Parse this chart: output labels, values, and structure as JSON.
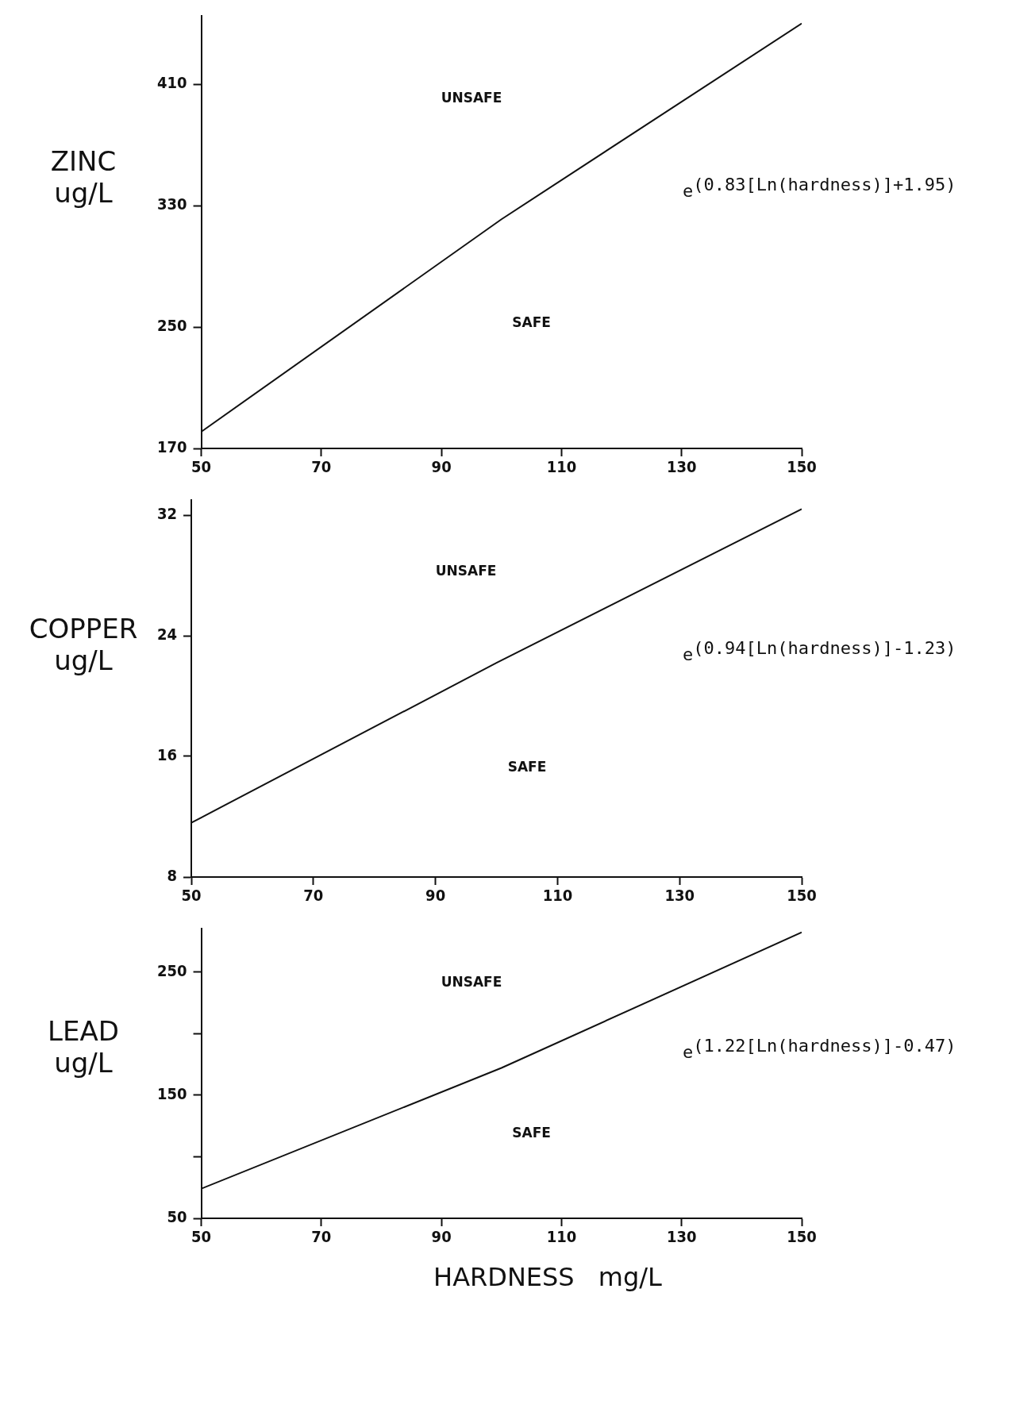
{
  "chart_data": [
    {
      "type": "line",
      "ylabel": "ZINC ug/L",
      "x": [
        50,
        100,
        150
      ],
      "values": [
        181,
        321,
        450
      ],
      "color": "#111111",
      "xlim": [
        50,
        150
      ],
      "xticks": [
        50,
        70,
        90,
        110,
        130,
        150
      ],
      "ylim": [
        170,
        455
      ],
      "yticks": [
        170,
        250,
        330,
        410
      ],
      "annotations": [
        "UNSAFE",
        "SAFE",
        "e$^{(0.83[Ln(hardness)]+1.95)}$"
      ]
    },
    {
      "type": "line",
      "ylabel": "COPPER ug/L",
      "x": [
        50,
        100,
        150
      ],
      "values": [
        11.6,
        22.2,
        32.4
      ],
      "color": "#111111",
      "xlim": [
        50,
        150
      ],
      "xticks": [
        50,
        70,
        90,
        110,
        130,
        150
      ],
      "ylim": [
        8,
        33
      ],
      "yticks": [
        8,
        16,
        24,
        32
      ],
      "annotations": [
        "UNSAFE",
        "SAFE",
        "e$^{(0.94[Ln(hardness)]-1.23)}$"
      ]
    },
    {
      "type": "line",
      "ylabel": "LEAD ug/L",
      "xlabel": "HARDNESS mg/L",
      "x": [
        50,
        100,
        150
      ],
      "values": [
        74,
        172,
        282
      ],
      "color": "#111111",
      "xlim": [
        50,
        150
      ],
      "xticks": [
        50,
        70,
        90,
        110,
        130,
        150
      ],
      "ylim": [
        50,
        285
      ],
      "yticks": [
        50,
        {
          "value": 100,
          "label": null
        },
        150,
        {
          "value": 200,
          "label": null
        },
        250
      ],
      "annotations": [
        "UNSAFE",
        "SAFE",
        "e$^{(1.22[Ln(hardness)]-0.47)}$"
      ]
    }
  ]
}
